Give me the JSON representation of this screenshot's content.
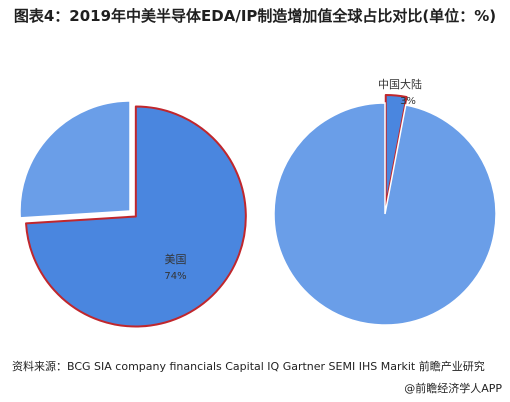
{
  "title": "图表4：2019年中美半导体EDA/IP制造增加值全球占比对比(单位：%)",
  "source": "资料来源：BCG SIA company financials Capital IQ Gartner SEMI IHS Markit 前瞻产业研究",
  "credit": "@前瞻经济学人APP",
  "colors": {
    "highlight_slice": "#4a86df",
    "other_slice": "#6a9ee8",
    "slice_outline": "#c0272d",
    "label_text": "#333333"
  },
  "chart_data": [
    {
      "type": "pie",
      "exploded_slice": "美国",
      "slices": [
        {
          "label": "美国",
          "value": 74,
          "value_label": "74%"
        },
        {
          "label": "",
          "value": 26,
          "value_label": ""
        }
      ]
    },
    {
      "type": "pie",
      "exploded_slice": "中国大陆",
      "slices": [
        {
          "label": "中国大陆",
          "value": 3,
          "value_label": "3%"
        },
        {
          "label": "",
          "value": 97,
          "value_label": ""
        }
      ]
    }
  ]
}
